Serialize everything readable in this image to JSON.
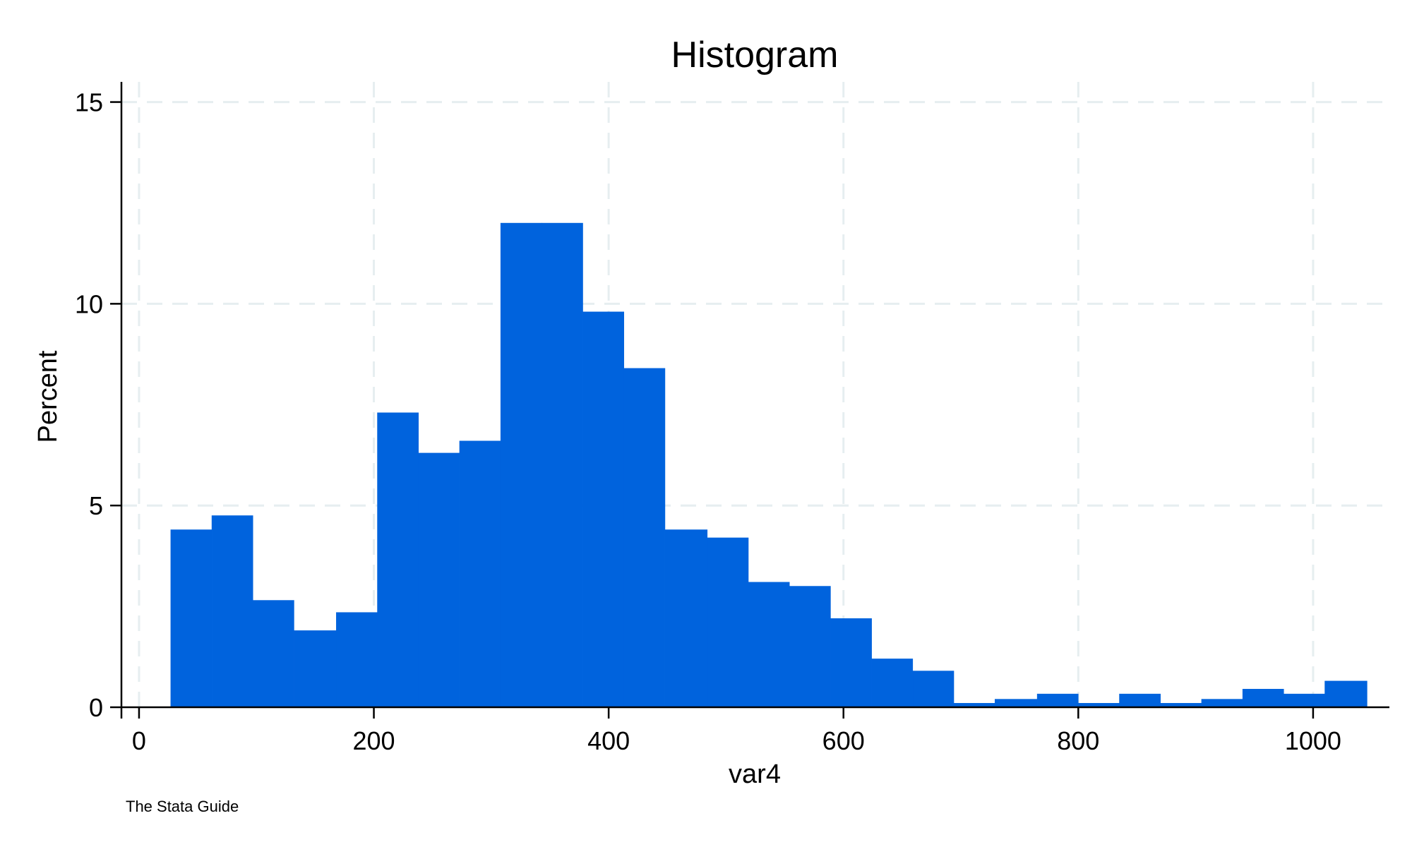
{
  "chart_data": {
    "type": "bar",
    "title": "Histogram",
    "xlabel": "var4",
    "ylabel": "Percent",
    "note": "The Stata Guide",
    "xlim": [
      -15,
      1065
    ],
    "ylim": [
      0,
      15.5
    ],
    "xticks": [
      0,
      200,
      400,
      600,
      800,
      1000
    ],
    "yticks": [
      0,
      5,
      10,
      15
    ],
    "grid": true,
    "bar_color": "#0063dd",
    "grid_color": "#e6eef0",
    "bins": [
      {
        "start": 27,
        "end": 62,
        "value": 4.4
      },
      {
        "start": 62,
        "end": 97,
        "value": 4.75
      },
      {
        "start": 97,
        "end": 132,
        "value": 2.65
      },
      {
        "start": 132,
        "end": 168,
        "value": 1.9
      },
      {
        "start": 168,
        "end": 203,
        "value": 2.35
      },
      {
        "start": 203,
        "end": 238,
        "value": 7.3
      },
      {
        "start": 238,
        "end": 273,
        "value": 6.3
      },
      {
        "start": 273,
        "end": 308,
        "value": 6.6
      },
      {
        "start": 308,
        "end": 343,
        "value": 12.0
      },
      {
        "start": 343,
        "end": 378,
        "value": 12.0
      },
      {
        "start": 378,
        "end": 413,
        "value": 9.8
      },
      {
        "start": 413,
        "end": 448,
        "value": 8.4
      },
      {
        "start": 448,
        "end": 484,
        "value": 4.4
      },
      {
        "start": 484,
        "end": 519,
        "value": 4.2
      },
      {
        "start": 519,
        "end": 554,
        "value": 3.1
      },
      {
        "start": 554,
        "end": 589,
        "value": 3.0
      },
      {
        "start": 589,
        "end": 624,
        "value": 2.2
      },
      {
        "start": 624,
        "end": 659,
        "value": 1.2
      },
      {
        "start": 659,
        "end": 694,
        "value": 0.9
      },
      {
        "start": 694,
        "end": 729,
        "value": 0.1
      },
      {
        "start": 729,
        "end": 765,
        "value": 0.2
      },
      {
        "start": 765,
        "end": 800,
        "value": 0.33
      },
      {
        "start": 800,
        "end": 835,
        "value": 0.1
      },
      {
        "start": 835,
        "end": 870,
        "value": 0.33
      },
      {
        "start": 870,
        "end": 905,
        "value": 0.1
      },
      {
        "start": 905,
        "end": 940,
        "value": 0.2
      },
      {
        "start": 940,
        "end": 975,
        "value": 0.45
      },
      {
        "start": 975,
        "end": 1010,
        "value": 0.33
      },
      {
        "start": 1010,
        "end": 1046,
        "value": 0.65
      }
    ]
  }
}
